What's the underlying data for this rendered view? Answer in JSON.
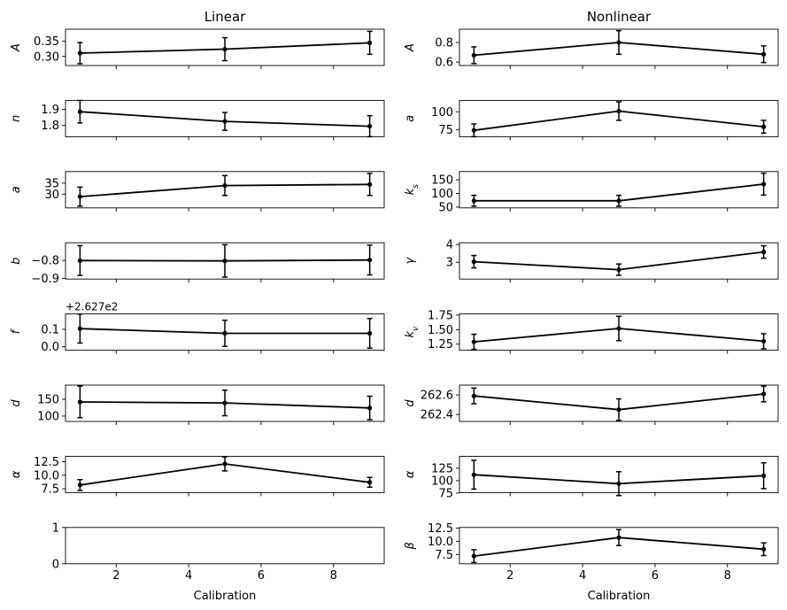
{
  "figure": {
    "column_titles": [
      "Linear",
      "Nonlinear"
    ],
    "xlabel": "Calibration",
    "xticks": [
      2,
      4,
      6,
      8
    ],
    "xlim": [
      0.6,
      9.4
    ],
    "style": {
      "line_color": "#000000",
      "marker": "dot",
      "errorbar_caps": true
    }
  },
  "chart_data": [
    {
      "id": "linear-A",
      "type": "line",
      "column": "Linear",
      "ylabel": "A",
      "x": [
        1,
        5,
        9
      ],
      "y": [
        0.311,
        0.324,
        0.345
      ],
      "yerr": [
        0.035,
        0.038,
        0.038
      ],
      "ylim": [
        0.27,
        0.39
      ],
      "yticks": [
        0.3,
        0.35
      ],
      "ytick_labels": [
        "0.30",
        "0.35"
      ]
    },
    {
      "id": "linear-n",
      "type": "line",
      "column": "Linear",
      "ylabel": "n",
      "x": [
        1,
        5,
        9
      ],
      "y": [
        1.885,
        1.825,
        1.795
      ],
      "yerr": [
        0.07,
        0.055,
        0.065
      ],
      "ylim": [
        1.73,
        1.955
      ],
      "yticks": [
        1.8,
        1.9
      ],
      "ytick_labels": [
        "1.8",
        "1.9"
      ]
    },
    {
      "id": "linear-a",
      "type": "line",
      "column": "Linear",
      "ylabel": "a",
      "x": [
        1,
        5,
        9
      ],
      "y": [
        28.9,
        33.9,
        34.4
      ],
      "yerr": [
        4.3,
        4.5,
        5.0
      ],
      "ylim": [
        23.8,
        40.2
      ],
      "yticks": [
        30,
        35
      ],
      "ytick_labels": [
        "30",
        "35"
      ]
    },
    {
      "id": "linear-b",
      "type": "line",
      "column": "Linear",
      "ylabel": "b",
      "x": [
        1,
        5,
        9
      ],
      "y": [
        -0.801,
        -0.803,
        -0.798
      ],
      "yerr": [
        0.082,
        0.089,
        0.082
      ],
      "ylim": [
        -0.903,
        -0.703
      ],
      "yticks": [
        -0.9,
        -0.8
      ],
      "ytick_labels": [
        "−0.9",
        "−0.8"
      ]
    },
    {
      "id": "linear-f",
      "type": "line",
      "column": "Linear",
      "ylabel": "f",
      "offset_label": "+2.627e2",
      "x": [
        1,
        5,
        9
      ],
      "y": [
        0.104,
        0.077,
        0.077
      ],
      "yerr": [
        0.083,
        0.075,
        0.085
      ],
      "ylim": [
        -0.02,
        0.188
      ],
      "yticks": [
        0.0,
        0.1
      ],
      "ytick_labels": [
        "0.0",
        "0.1"
      ]
    },
    {
      "id": "linear-d",
      "type": "line",
      "column": "Linear",
      "ylabel": "d",
      "x": [
        1,
        5,
        9
      ],
      "y": [
        142,
        139,
        124
      ],
      "yerr": [
        47,
        38,
        35
      ],
      "ylim": [
        84,
        192
      ],
      "yticks": [
        100,
        150
      ],
      "ytick_labels": [
        "100",
        "150"
      ]
    },
    {
      "id": "linear-alpha",
      "type": "line",
      "column": "Linear",
      "ylabel": "α",
      "x": [
        1,
        5,
        9
      ],
      "y": [
        8.2,
        12.1,
        8.7
      ],
      "yerr": [
        1.0,
        1.3,
        0.9
      ],
      "ylim": [
        6.8,
        13.5
      ],
      "yticks": [
        7.5,
        10.0,
        12.5
      ],
      "ytick_labels": [
        "7.5",
        "10.0",
        "12.5"
      ]
    },
    {
      "id": "linear-empty",
      "type": "line",
      "column": "Linear",
      "ylabel": "",
      "x": [],
      "y": [],
      "yerr": [],
      "ylim": [
        0,
        1
      ],
      "yticks": [
        0,
        1
      ],
      "ytick_labels": [
        "0",
        "1"
      ]
    },
    {
      "id": "nonlinear-A",
      "type": "line",
      "column": "Nonlinear",
      "ylabel": "A",
      "x": [
        1,
        5,
        9
      ],
      "y": [
        0.67,
        0.8,
        0.68
      ],
      "yerr": [
        0.085,
        0.12,
        0.085
      ],
      "ylim": [
        0.565,
        0.935
      ],
      "yticks": [
        0.6,
        0.8
      ],
      "ytick_labels": [
        "0.6",
        "0.8"
      ]
    },
    {
      "id": "nonlinear-a",
      "type": "line",
      "column": "Nonlinear",
      "ylabel": "a",
      "x": [
        1,
        5,
        9
      ],
      "y": [
        74,
        101,
        79
      ],
      "yerr": [
        9,
        13,
        9
      ],
      "ylim": [
        65,
        116
      ],
      "yticks": [
        75,
        100
      ],
      "ytick_labels": [
        "75",
        "100"
      ]
    },
    {
      "id": "nonlinear-ks",
      "type": "line",
      "column": "Nonlinear",
      "ylabel": "k_s",
      "x": [
        1,
        5,
        9
      ],
      "y": [
        73,
        73,
        134
      ],
      "yerr": [
        20,
        20,
        40
      ],
      "ylim": [
        47,
        180
      ],
      "yticks": [
        50,
        100,
        150
      ],
      "ytick_labels": [
        "50",
        "100",
        "150"
      ]
    },
    {
      "id": "nonlinear-gamma",
      "type": "line",
      "column": "Nonlinear",
      "ylabel": "γ",
      "x": [
        1,
        5,
        9
      ],
      "y": [
        3.03,
        2.58,
        3.58
      ],
      "yerr": [
        0.35,
        0.32,
        0.35
      ],
      "ylim": [
        2.05,
        4.1
      ],
      "yticks": [
        3,
        4
      ],
      "ytick_labels": [
        "3",
        "4"
      ]
    },
    {
      "id": "nonlinear-kv",
      "type": "line",
      "column": "Nonlinear",
      "ylabel": "k_v",
      "x": [
        1,
        5,
        9
      ],
      "y": [
        1.29,
        1.52,
        1.3
      ],
      "yerr": [
        0.13,
        0.21,
        0.13
      ],
      "ylim": [
        1.145,
        1.77
      ],
      "yticks": [
        1.25,
        1.5,
        1.75
      ],
      "ytick_labels": [
        "1.25",
        "1.50",
        "1.75"
      ]
    },
    {
      "id": "nonlinear-d",
      "type": "line",
      "column": "Nonlinear",
      "ylabel": "d",
      "x": [
        1,
        5,
        9
      ],
      "y": [
        262.59,
        262.45,
        262.61
      ],
      "yerr": [
        0.08,
        0.11,
        0.08
      ],
      "ylim": [
        262.33,
        262.7
      ],
      "yticks": [
        262.4,
        262.6
      ],
      "ytick_labels": [
        "262.4",
        "262.6"
      ]
    },
    {
      "id": "nonlinear-alpha",
      "type": "line",
      "column": "Nonlinear",
      "ylabel": "α",
      "x": [
        1,
        5,
        9
      ],
      "y": [
        112,
        94,
        110
      ],
      "yerr": [
        29,
        24,
        26
      ],
      "ylim": [
        76,
        149
      ],
      "yticks": [
        75,
        100,
        125
      ],
      "ytick_labels": [
        "75",
        "100",
        "125"
      ]
    },
    {
      "id": "nonlinear-beta",
      "type": "line",
      "column": "Nonlinear",
      "ylabel": "β",
      "x": [
        1,
        5,
        9
      ],
      "y": [
        7.2,
        10.7,
        8.5
      ],
      "yerr": [
        1.2,
        1.5,
        1.2
      ],
      "ylim": [
        5.75,
        12.6
      ],
      "yticks": [
        7.5,
        10.0,
        12.5
      ],
      "ytick_labels": [
        "7.5",
        "10.0",
        "12.5"
      ]
    }
  ]
}
